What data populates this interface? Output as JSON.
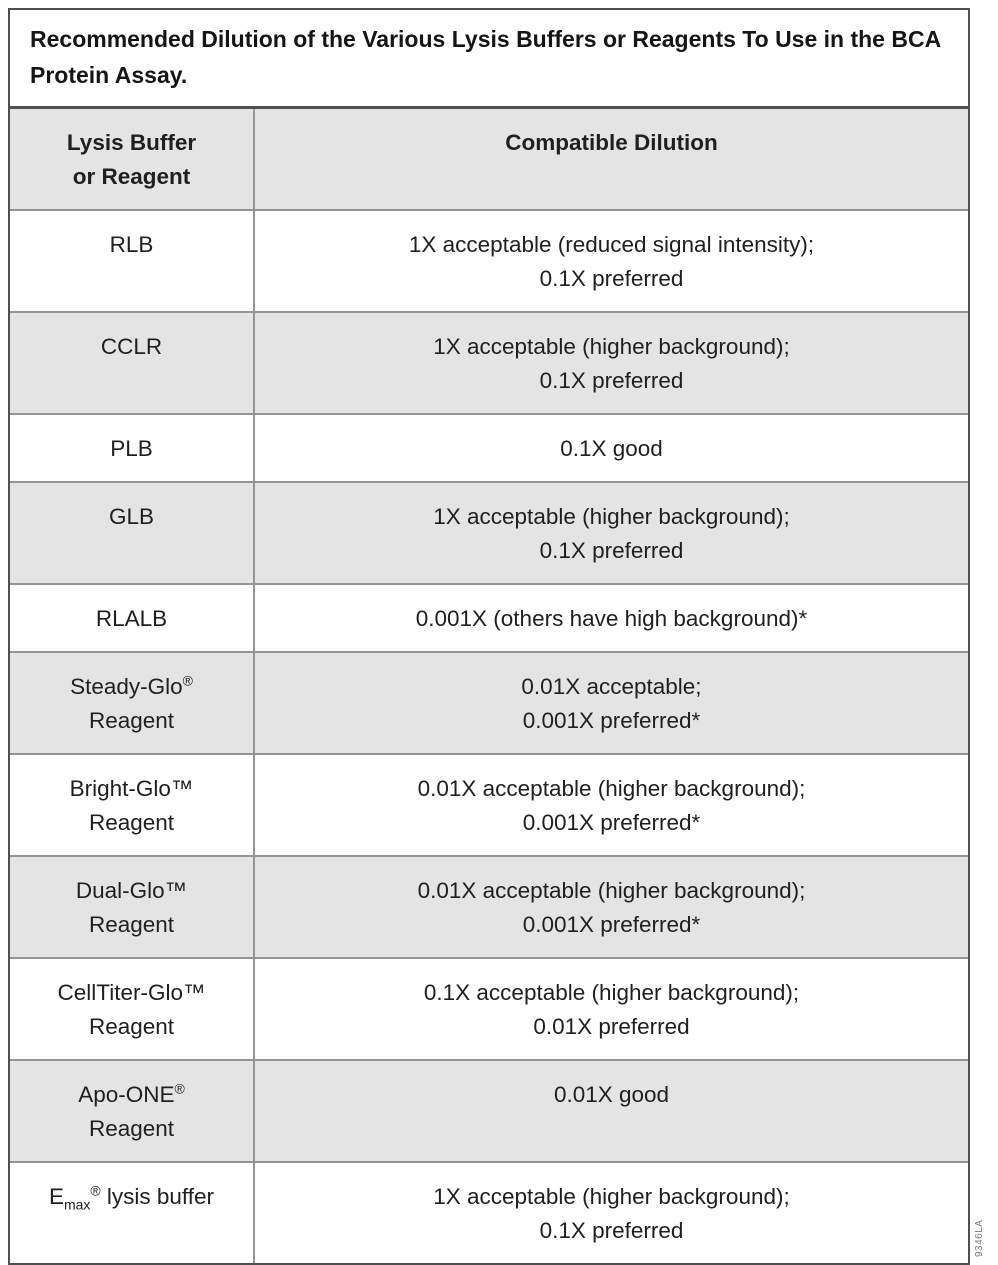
{
  "title": "Recommended Dilution of the Various Lysis Buffers or Reagents To Use in the BCA Protein Assay.",
  "colors": {
    "shaded_row": "#e4e4e4",
    "border_outer": "#4f4f4f",
    "border_inner": "#949494",
    "text": "#1f1f1f"
  },
  "header": {
    "col1_lines": [
      "Lysis Buffer",
      "or Reagent"
    ],
    "col2_lines": [
      "Compatible Dilution"
    ]
  },
  "rows": [
    {
      "shaded": false,
      "name": [
        [
          {
            "t": "RLB"
          }
        ]
      ],
      "dilution": [
        "1X acceptable (reduced signal intensity);",
        "0.1X preferred"
      ]
    },
    {
      "shaded": true,
      "name": [
        [
          {
            "t": "CCLR"
          }
        ]
      ],
      "dilution": [
        "1X acceptable (higher background);",
        "0.1X preferred"
      ]
    },
    {
      "shaded": false,
      "name": [
        [
          {
            "t": "PLB"
          }
        ]
      ],
      "dilution": [
        "0.1X good"
      ]
    },
    {
      "shaded": true,
      "name": [
        [
          {
            "t": "GLB"
          }
        ]
      ],
      "dilution": [
        "1X acceptable (higher background);",
        "0.1X preferred"
      ]
    },
    {
      "shaded": false,
      "name": [
        [
          {
            "t": "RLALB"
          }
        ]
      ],
      "dilution": [
        "0.001X (others have high background)*"
      ]
    },
    {
      "shaded": true,
      "name": [
        [
          {
            "t": "Steady-Glo"
          },
          {
            "t": "®",
            "sup": true
          }
        ],
        [
          {
            "t": "Reagent"
          }
        ]
      ],
      "dilution": [
        "0.01X acceptable;",
        "0.001X preferred*"
      ]
    },
    {
      "shaded": false,
      "name": [
        [
          {
            "t": "Bright-Glo"
          },
          {
            "t": "™"
          }
        ],
        [
          {
            "t": "Reagent"
          }
        ]
      ],
      "dilution": [
        "0.01X acceptable (higher background);",
        "0.001X preferred*"
      ]
    },
    {
      "shaded": true,
      "name": [
        [
          {
            "t": "Dual-Glo"
          },
          {
            "t": "™"
          }
        ],
        [
          {
            "t": "Reagent"
          }
        ]
      ],
      "dilution": [
        "0.01X acceptable (higher background);",
        "0.001X preferred*"
      ]
    },
    {
      "shaded": false,
      "name": [
        [
          {
            "t": "CellTiter-Glo"
          },
          {
            "t": "™"
          }
        ],
        [
          {
            "t": "Reagent"
          }
        ]
      ],
      "dilution": [
        "0.1X acceptable (higher background);",
        "0.01X preferred"
      ]
    },
    {
      "shaded": true,
      "name": [
        [
          {
            "t": "Apo-ONE"
          },
          {
            "t": "®",
            "sup": true
          }
        ],
        [
          {
            "t": "Reagent"
          }
        ]
      ],
      "dilution": [
        "0.01X good"
      ]
    },
    {
      "shaded": false,
      "name": [
        [
          {
            "t": "E"
          },
          {
            "t": "max",
            "sub": true
          },
          {
            "t": "®",
            "sup": true
          },
          {
            "t": " lysis buffer"
          }
        ]
      ],
      "dilution": [
        "1X acceptable (higher background);",
        "0.1X preferred"
      ]
    }
  ],
  "side_code": "9346LA"
}
